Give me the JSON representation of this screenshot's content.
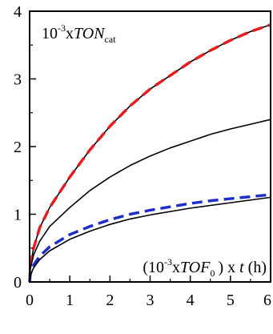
{
  "chart_data": {
    "type": "line",
    "title": "",
    "xlabel": "",
    "ylabel": "",
    "xlim": [
      0,
      6
    ],
    "ylim": [
      0,
      4
    ],
    "xticks": [
      "0",
      "1",
      "2",
      "3",
      "4",
      "5",
      "6"
    ],
    "yticks": [
      "0",
      "1",
      "2",
      "3",
      "4"
    ],
    "grid": false,
    "annotations": {
      "top_left": {
        "prefix": "10",
        "sup": "-3",
        "mid": "x",
        "italic": "TON",
        "sub": "cat"
      },
      "bottom_right": {
        "open": "(10",
        "sup": "-3",
        "mid": "x",
        "italic": "TOF",
        "sub": "0",
        "close": ") x",
        "t": "t",
        "unit": "(h)"
      }
    },
    "series": [
      {
        "style": "solid",
        "color": "#000000",
        "x": [
          0,
          0.02,
          0.1,
          0.25,
          0.5,
          1,
          1.5,
          2,
          2.5,
          3,
          3.5,
          4,
          4.5,
          5,
          5.5,
          6
        ],
        "y": [
          0,
          0.25,
          0.5,
          0.8,
          1.1,
          1.55,
          1.95,
          2.3,
          2.6,
          2.85,
          3.05,
          3.25,
          3.42,
          3.57,
          3.7,
          3.8
        ]
      },
      {
        "style": "dashed",
        "color": "#e41e1e",
        "x": [
          0,
          0.02,
          0.1,
          0.25,
          0.5,
          1,
          1.5,
          2,
          2.5,
          3,
          3.5,
          4,
          4.5,
          5,
          5.5,
          6
        ],
        "y": [
          0,
          0.25,
          0.5,
          0.8,
          1.1,
          1.55,
          1.95,
          2.3,
          2.6,
          2.85,
          3.05,
          3.25,
          3.42,
          3.57,
          3.7,
          3.8
        ]
      },
      {
        "style": "solid",
        "color": "#000000",
        "x": [
          0,
          0.02,
          0.1,
          0.25,
          0.5,
          1,
          1.5,
          2,
          2.5,
          3,
          3.5,
          4,
          4.5,
          5,
          5.5,
          6
        ],
        "y": [
          0,
          0.2,
          0.4,
          0.6,
          0.82,
          1.1,
          1.35,
          1.55,
          1.72,
          1.86,
          1.98,
          2.08,
          2.18,
          2.26,
          2.33,
          2.4
        ]
      },
      {
        "style": "dashed",
        "color": "#1e2ec8",
        "x": [
          0,
          0.02,
          0.1,
          0.25,
          0.5,
          1,
          1.5,
          2,
          2.5,
          3,
          3.5,
          4,
          4.5,
          5,
          5.5,
          6
        ],
        "y": [
          0,
          0.12,
          0.25,
          0.38,
          0.52,
          0.7,
          0.82,
          0.92,
          1.0,
          1.06,
          1.11,
          1.16,
          1.2,
          1.23,
          1.26,
          1.29
        ]
      },
      {
        "style": "solid",
        "color": "#000000",
        "x": [
          0,
          0.02,
          0.1,
          0.25,
          0.5,
          1,
          1.5,
          2,
          2.5,
          3,
          3.5,
          4,
          4.5,
          5,
          5.5,
          6
        ],
        "y": [
          0,
          0.1,
          0.21,
          0.33,
          0.46,
          0.63,
          0.75,
          0.85,
          0.93,
          0.99,
          1.04,
          1.09,
          1.13,
          1.17,
          1.21,
          1.25
        ]
      }
    ]
  }
}
